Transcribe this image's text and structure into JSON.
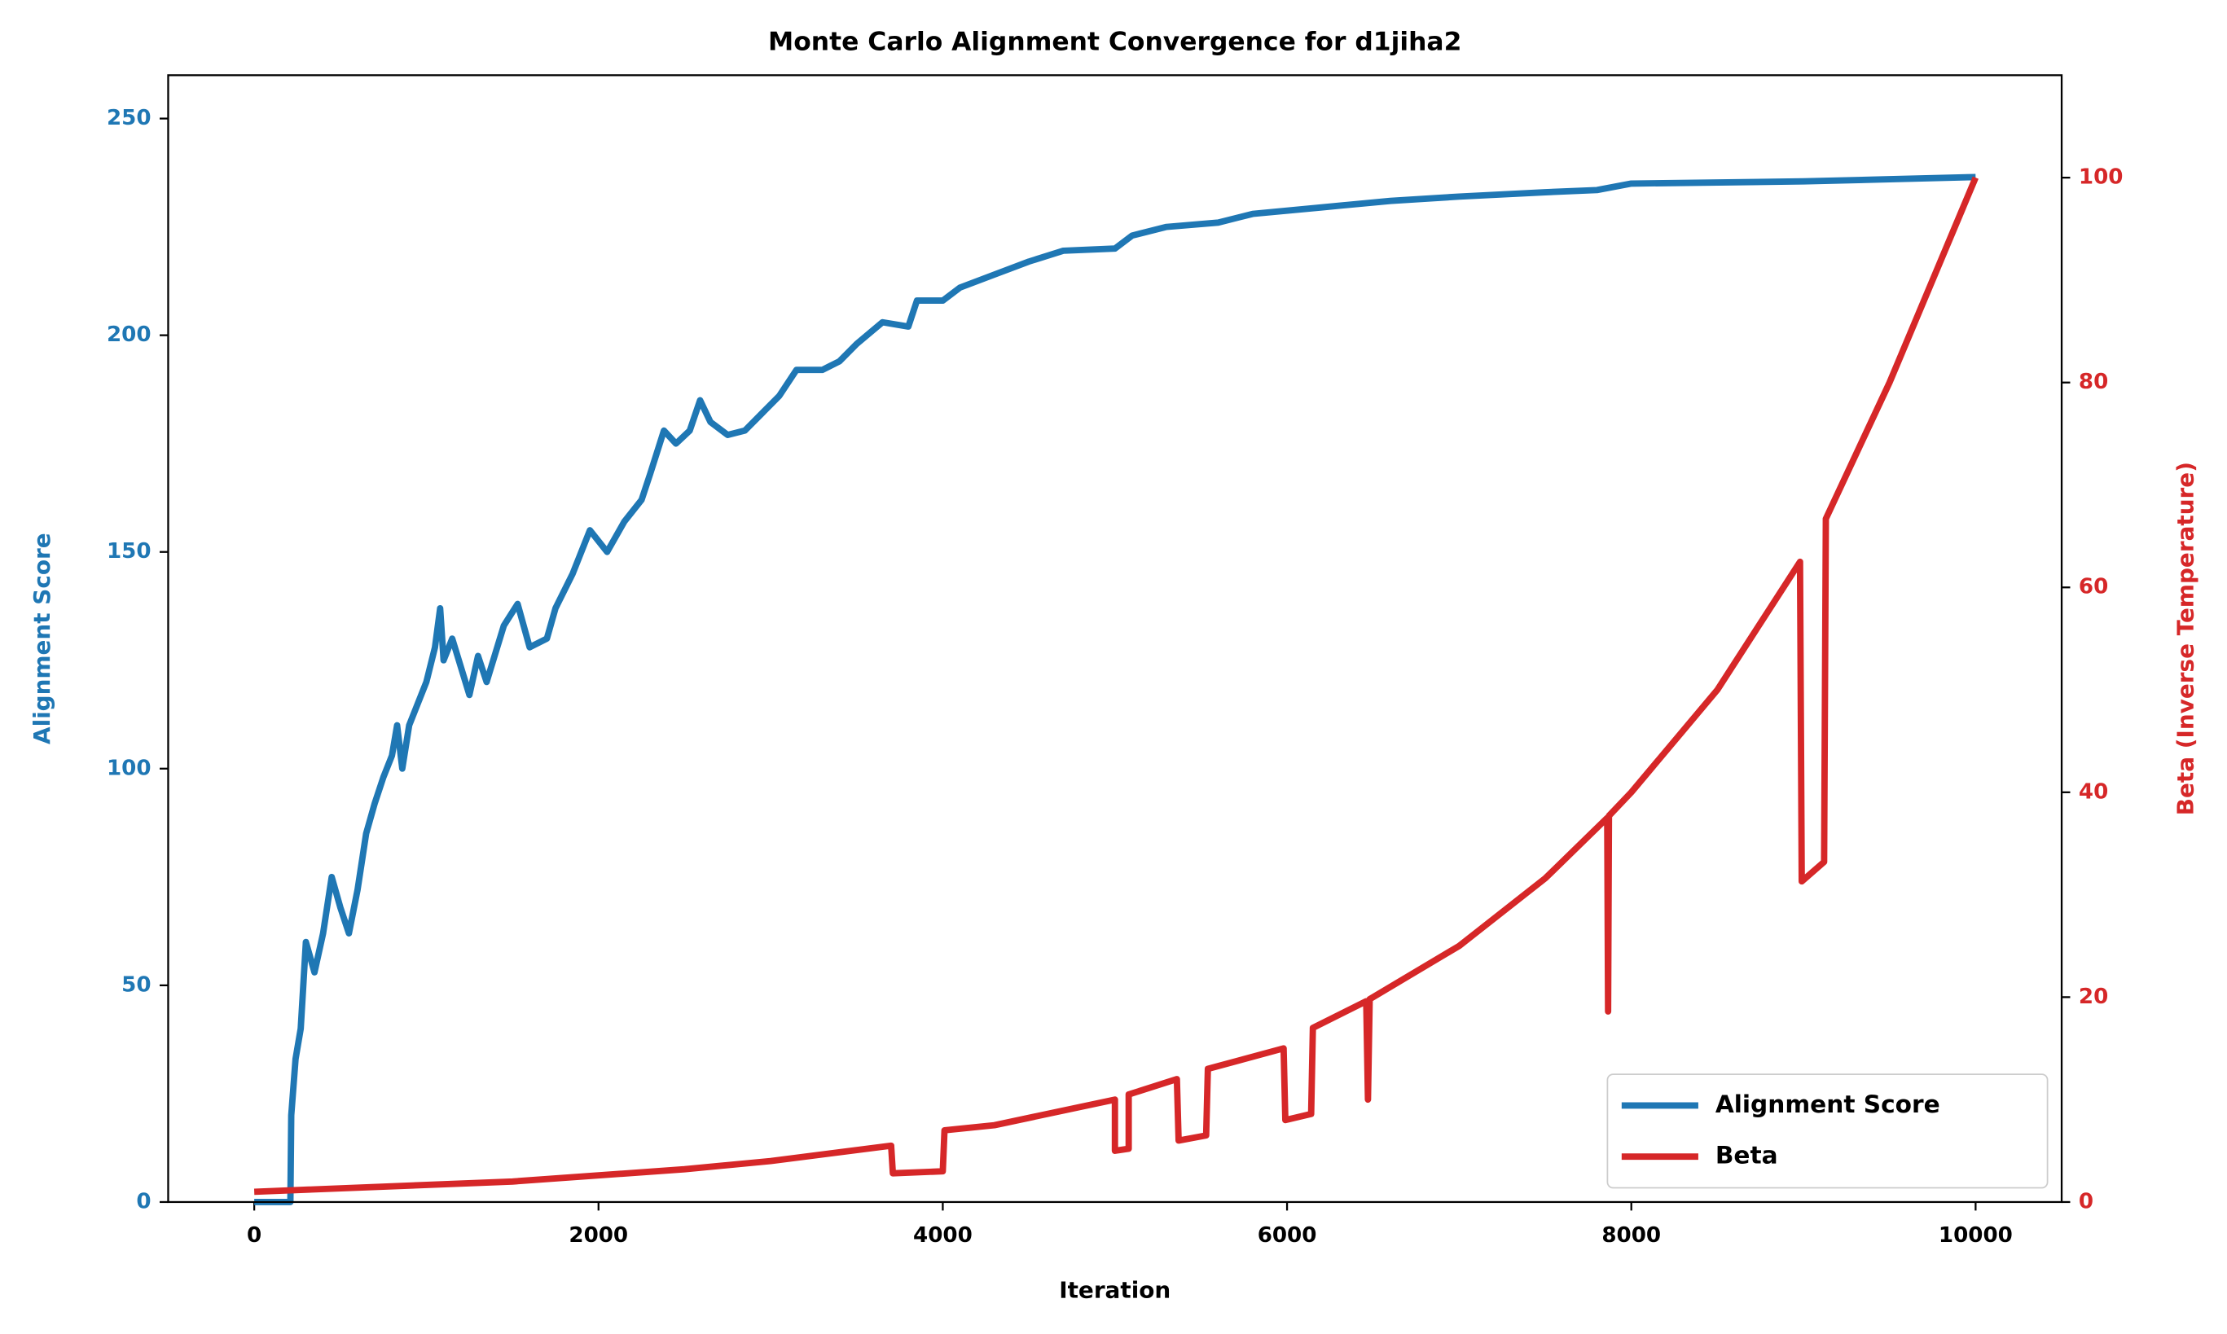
{
  "chart_data": {
    "type": "line",
    "title": "Monte Carlo Alignment Convergence for d1jiha2",
    "xlabel": "Iteration",
    "ylabel": "Alignment Score",
    "y2label": "Beta (Inverse Temperature)",
    "xlim": [
      -500,
      10500
    ],
    "xticks": [
      0,
      2000,
      4000,
      6000,
      8000,
      10000
    ],
    "ylim": [
      0,
      260
    ],
    "yticks": [
      0,
      50,
      100,
      150,
      200,
      250
    ],
    "y2lim": [
      0,
      110
    ],
    "y2ticks": [
      0,
      20,
      40,
      60,
      80,
      100
    ],
    "legend": "lower right",
    "grid": false,
    "series": [
      {
        "name": "Alignment Score",
        "color": "#1f77b4",
        "axis": "y",
        "x": [
          0,
          210,
          215,
          240,
          270,
          300,
          350,
          400,
          450,
          500,
          550,
          600,
          650,
          700,
          750,
          800,
          830,
          860,
          900,
          1000,
          1050,
          1080,
          1100,
          1150,
          1250,
          1300,
          1350,
          1450,
          1530,
          1600,
          1700,
          1750,
          1850,
          1950,
          2050,
          2150,
          2250,
          2300,
          2380,
          2450,
          2530,
          2590,
          2650,
          2750,
          2850,
          2950,
          3050,
          3150,
          3300,
          3400,
          3500,
          3650,
          3800,
          3850,
          4000,
          4100,
          4300,
          4500,
          4700,
          5000,
          5100,
          5300,
          5600,
          5800,
          6200,
          6600,
          7000,
          7500,
          7800,
          8000,
          9000,
          9500,
          10000
        ],
        "values": [
          0,
          0,
          20,
          33,
          40,
          60,
          53,
          62,
          75,
          68,
          62,
          72,
          85,
          92,
          98,
          103,
          110,
          100,
          110,
          120,
          128,
          137,
          125,
          130,
          117,
          126,
          120,
          133,
          138,
          128,
          130,
          137,
          145,
          155,
          150,
          157,
          162,
          168,
          178,
          175,
          178,
          185,
          180,
          177,
          178,
          182,
          186,
          192,
          192,
          194,
          198,
          203,
          202,
          208,
          208,
          211,
          214,
          217,
          219.5,
          220,
          223,
          225,
          226,
          228,
          229.5,
          231,
          232,
          233,
          233.5,
          235,
          235.5,
          236,
          236.5
        ]
      },
      {
        "name": "Beta",
        "color": "#d62728",
        "axis": "y2",
        "x": [
          0,
          1500,
          2500,
          3000,
          3700,
          3710,
          4000,
          4010,
          4300,
          5000,
          5000,
          5080,
          5080,
          5360,
          5370,
          5530,
          5540,
          5980,
          5990,
          6140,
          6150,
          6460,
          6470,
          6480,
          7000,
          7500,
          7860,
          7865,
          7870,
          8000,
          8500,
          8980,
          8990,
          9120,
          9130,
          9500,
          10000
        ],
        "values": [
          1,
          2,
          3.2,
          4,
          5.5,
          2.8,
          3,
          7,
          7.5,
          10,
          5,
          5.2,
          10.5,
          12,
          6,
          6.5,
          13,
          15,
          8,
          8.6,
          17,
          19.6,
          10,
          19.8,
          25,
          31.6,
          37.5,
          18.6,
          37.7,
          40,
          50,
          62.5,
          31.3,
          33.2,
          66.7,
          80,
          100
        ]
      }
    ]
  }
}
